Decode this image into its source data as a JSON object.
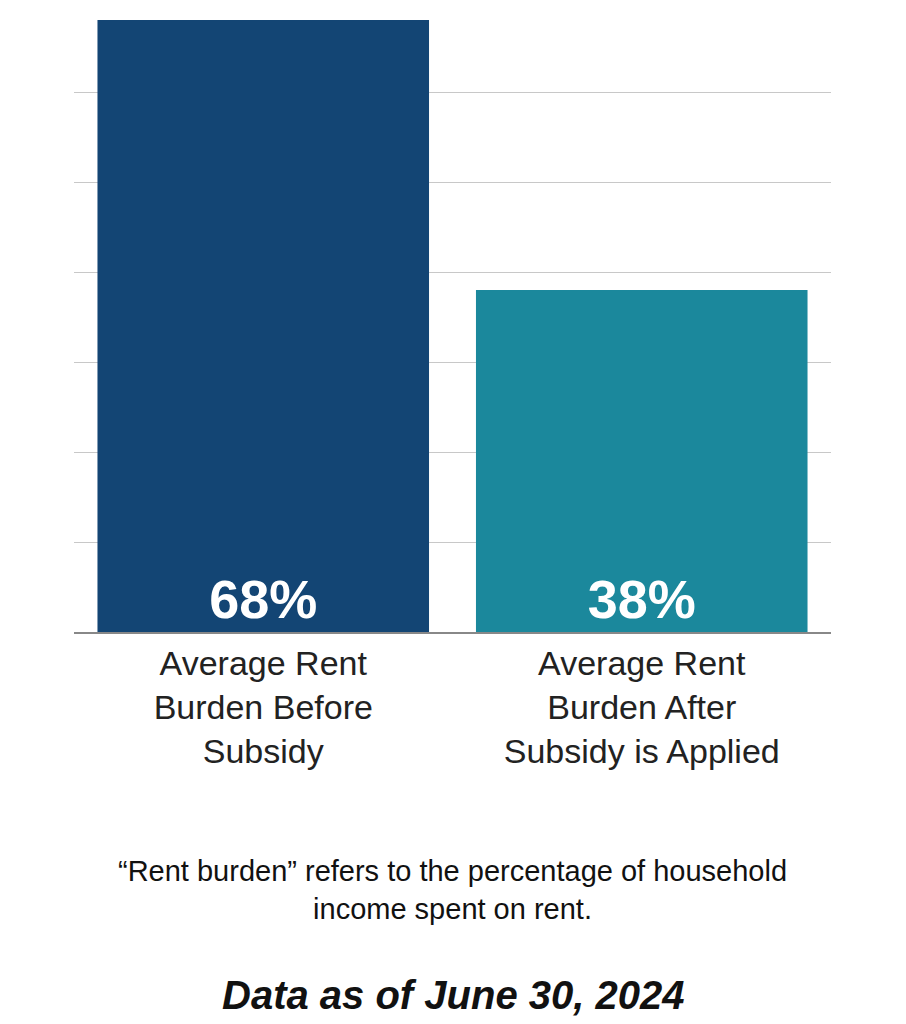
{
  "chart_data": {
    "type": "bar",
    "categories": [
      "Average Rent Burden Before Subsidy",
      "Average Rent Burden After Subsidy is Applied"
    ],
    "values": [
      68,
      38
    ],
    "value_labels": [
      "68%",
      "38%"
    ],
    "colors": [
      "#134574",
      "#1b889c"
    ],
    "data_labels": true,
    "ylim": [
      0,
      70
    ],
    "yticks": [
      0,
      10,
      20,
      30,
      40,
      50,
      60,
      70
    ],
    "grid": true,
    "tick_labels": "x",
    "note": "“Rent burden” refers to the percentage of household income spent on rent.",
    "footnote": "Data as of June 30, 2024"
  }
}
